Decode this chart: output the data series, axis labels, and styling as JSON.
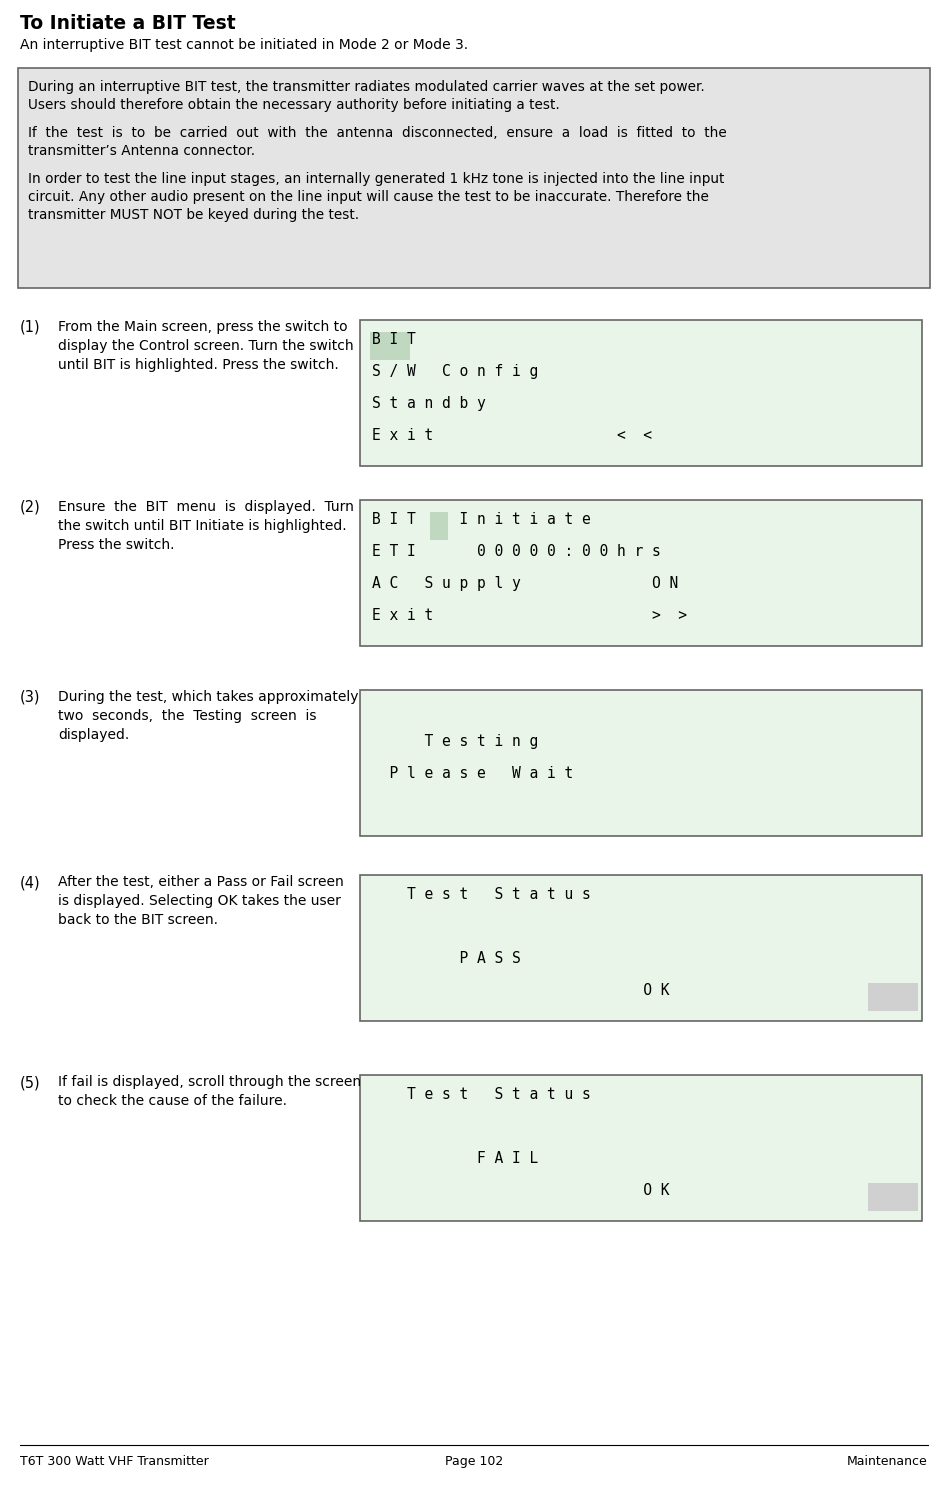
{
  "title": "To Initiate a BIT Test",
  "subtitle": "An interruptive BIT test cannot be initiated in Mode 2 or Mode 3.",
  "warn_para1": "During an interruptive BIT test, the transmitter radiates modulated carrier waves at the set power.\nUsers should therefore obtain the necessary authority before initiating a test.",
  "warn_para2": "If  the  test  is  to  be  carried  out  with  the  antenna  disconnected,  ensure  a  load  is  fitted  to  the\ntransmitter’s Antenna connector.",
  "warn_para3": "In order to test the line input stages, an internally generated 1 kHz tone is injected into the line input\ncircuit. Any other audio present on the line input will cause the test to be inaccurate. Therefore the\ntransmitter MUST NOT be keyed during the test.",
  "steps": [
    {
      "num": "(1)",
      "text": "From the Main screen, press the switch to\ndisplay the Control screen. Turn the switch\nuntil BIT is highlighted. Press the switch.",
      "screen_lines": [
        "B I T",
        "S / W   C o n f i g",
        "S t a n d b y",
        "E x i t                     <  <"
      ],
      "highlight_line": 0,
      "highlight_char": "B I T",
      "ok_line": -1
    },
    {
      "num": "(2)",
      "text": "Ensure  the  BIT  menu  is  displayed.  Turn\nthe switch until BIT Initiate is highlighted.\nPress the switch.",
      "screen_lines": [
        "B I T     I n i t i a t e",
        "E T I       0 0 0 0 0 : 0 0 h r s",
        "A C   S u p p l y               O N",
        "E x i t                         >  >"
      ],
      "highlight_line": 0,
      "highlight_char": "I",
      "ok_line": -1
    },
    {
      "num": "(3)",
      "text": "During the test, which takes approximately\ntwo  seconds,  the  Testing  screen  is\ndisplayed.",
      "screen_lines": [
        "",
        "      T e s t i n g",
        "  P l e a s e   W a i t",
        ""
      ],
      "highlight_line": -1,
      "highlight_char": "",
      "ok_line": -1
    },
    {
      "num": "(4)",
      "text": "After the test, either a Pass or Fail screen\nis displayed. Selecting OK takes the user\nback to the BIT screen.",
      "screen_lines": [
        "    T e s t   S t a t u s",
        "",
        "          P A S S",
        "                               O K"
      ],
      "highlight_line": -1,
      "highlight_char": "",
      "ok_line": 3
    },
    {
      "num": "(5)",
      "text": "If fail is displayed, scroll through the screen\nto check the cause of the failure.",
      "screen_lines": [
        "    T e s t   S t a t u s",
        "",
        "            F A I L",
        "                               O K"
      ],
      "highlight_line": -1,
      "highlight_char": "",
      "ok_line": 3
    }
  ],
  "screen_bg": "#e8f5e8",
  "screen_border": "#666666",
  "warning_bg": "#e4e4e4",
  "warning_border": "#666666",
  "ok_bg": "#d0d0d0",
  "highlight_bg": "#c0d8c0",
  "footer_left": "T6T 300 Watt VHF Transmitter",
  "footer_center": "Page 102",
  "footer_right": "Maintenance"
}
